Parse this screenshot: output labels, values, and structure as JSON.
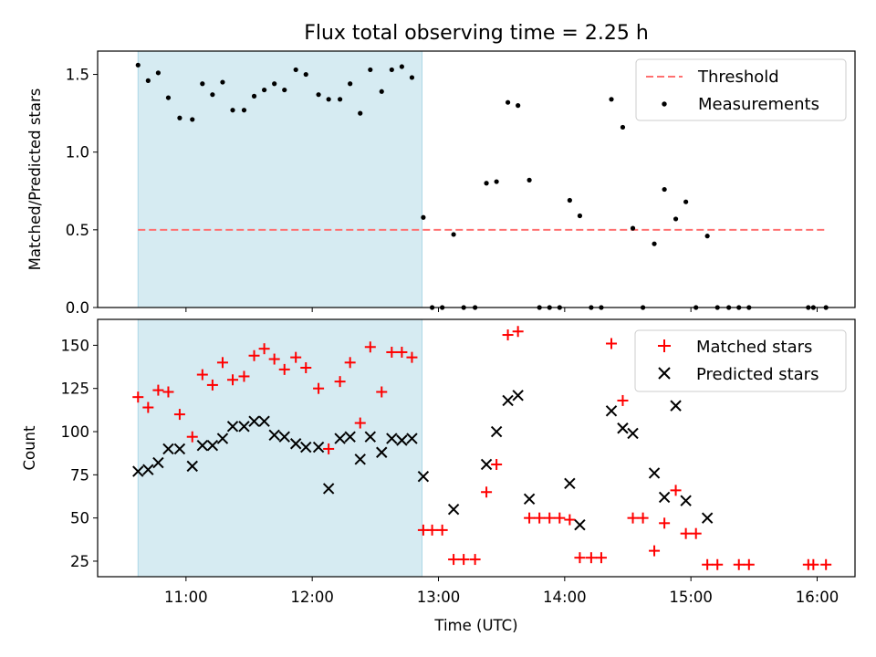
{
  "chart_data": {
    "title": "Flux total observing time = 2.25 h",
    "xlabel": "Time (UTC)",
    "x_unit": "hours UTC",
    "xlim": [
      10.3,
      16.3
    ],
    "xticks": [
      {
        "value": 11,
        "label": "11:00"
      },
      {
        "value": 12,
        "label": "12:00"
      },
      {
        "value": 13,
        "label": "13:00"
      },
      {
        "value": 14,
        "label": "14:00"
      },
      {
        "value": 15,
        "label": "15:00"
      },
      {
        "value": 16,
        "label": "16:00"
      }
    ],
    "shaded_interval": {
      "x_start": 10.62,
      "x_end": 12.87,
      "color": "#add8e6"
    },
    "panels": [
      {
        "type": "scatter",
        "ylabel": "Matched/Predicted stars",
        "ylim": [
          0,
          1.65
        ],
        "yticks": [
          0.0,
          0.5,
          1.0,
          1.5
        ],
        "ytick_labels": [
          "0.0",
          "0.5",
          "1.0",
          "1.5"
        ],
        "legend_position": "upper-right",
        "threshold": {
          "name": "Threshold",
          "y": 0.5,
          "x_start": 10.62,
          "x_end": 16.07,
          "color": "#ff7070",
          "style": "dashed"
        },
        "series": [
          {
            "name": "Measurements",
            "marker": "dot",
            "color": "#000000",
            "points": [
              [
                10.62,
                1.56
              ],
              [
                10.7,
                1.46
              ],
              [
                10.78,
                1.51
              ],
              [
                10.86,
                1.35
              ],
              [
                10.95,
                1.22
              ],
              [
                11.05,
                1.21
              ],
              [
                11.13,
                1.44
              ],
              [
                11.21,
                1.37
              ],
              [
                11.29,
                1.45
              ],
              [
                11.37,
                1.27
              ],
              [
                11.46,
                1.27
              ],
              [
                11.54,
                1.36
              ],
              [
                11.62,
                1.4
              ],
              [
                11.7,
                1.44
              ],
              [
                11.78,
                1.4
              ],
              [
                11.87,
                1.53
              ],
              [
                11.95,
                1.5
              ],
              [
                12.05,
                1.37
              ],
              [
                12.13,
                1.34
              ],
              [
                12.22,
                1.34
              ],
              [
                12.3,
                1.44
              ],
              [
                12.38,
                1.25
              ],
              [
                12.46,
                1.53
              ],
              [
                12.55,
                1.39
              ],
              [
                12.63,
                1.53
              ],
              [
                12.71,
                1.55
              ],
              [
                12.79,
                1.48
              ],
              [
                12.88,
                0.58
              ],
              [
                12.95,
                0.0
              ],
              [
                13.03,
                0.0
              ],
              [
                13.12,
                0.47
              ],
              [
                13.2,
                0.0
              ],
              [
                13.29,
                0.0
              ],
              [
                13.38,
                0.8
              ],
              [
                13.46,
                0.81
              ],
              [
                13.55,
                1.32
              ],
              [
                13.63,
                1.3
              ],
              [
                13.72,
                0.82
              ],
              [
                13.8,
                0.0
              ],
              [
                13.88,
                0.0
              ],
              [
                13.96,
                0.0
              ],
              [
                14.04,
                0.69
              ],
              [
                14.12,
                0.59
              ],
              [
                14.21,
                0.0
              ],
              [
                14.29,
                0.0
              ],
              [
                14.37,
                1.34
              ],
              [
                14.46,
                1.16
              ],
              [
                14.54,
                0.51
              ],
              [
                14.62,
                0.0
              ],
              [
                14.71,
                0.41
              ],
              [
                14.79,
                0.76
              ],
              [
                14.88,
                0.57
              ],
              [
                14.96,
                0.68
              ],
              [
                15.04,
                0.0
              ],
              [
                15.13,
                0.46
              ],
              [
                15.21,
                0.0
              ],
              [
                15.3,
                0.0
              ],
              [
                15.38,
                0.0
              ],
              [
                15.46,
                0.0
              ],
              [
                15.93,
                0.0
              ],
              [
                15.97,
                0.0
              ],
              [
                16.07,
                0.0
              ]
            ]
          }
        ]
      },
      {
        "type": "scatter",
        "ylabel": "Count",
        "ylim": [
          16,
          165
        ],
        "yticks": [
          25,
          50,
          75,
          100,
          125,
          150
        ],
        "ytick_labels": [
          "25",
          "50",
          "75",
          "100",
          "125",
          "150"
        ],
        "legend_position": "upper-right",
        "series": [
          {
            "name": "Matched stars",
            "marker": "plus",
            "color": "#ff0000",
            "points": [
              [
                10.62,
                120
              ],
              [
                10.7,
                114
              ],
              [
                10.78,
                124
              ],
              [
                10.86,
                123
              ],
              [
                10.95,
                110
              ],
              [
                11.05,
                97
              ],
              [
                11.13,
                133
              ],
              [
                11.21,
                127
              ],
              [
                11.29,
                140
              ],
              [
                11.37,
                130
              ],
              [
                11.46,
                132
              ],
              [
                11.54,
                144
              ],
              [
                11.62,
                148
              ],
              [
                11.7,
                142
              ],
              [
                11.78,
                136
              ],
              [
                11.87,
                143
              ],
              [
                11.95,
                137
              ],
              [
                12.05,
                125
              ],
              [
                12.13,
                90
              ],
              [
                12.22,
                129
              ],
              [
                12.3,
                140
              ],
              [
                12.38,
                105
              ],
              [
                12.46,
                149
              ],
              [
                12.55,
                123
              ],
              [
                12.63,
                146
              ],
              [
                12.71,
                146
              ],
              [
                12.79,
                143
              ],
              [
                12.88,
                43
              ],
              [
                12.95,
                43
              ],
              [
                13.03,
                43
              ],
              [
                13.12,
                26
              ],
              [
                13.2,
                26
              ],
              [
                13.29,
                26
              ],
              [
                13.38,
                65
              ],
              [
                13.46,
                81
              ],
              [
                13.55,
                156
              ],
              [
                13.63,
                158
              ],
              [
                13.72,
                50
              ],
              [
                13.8,
                50
              ],
              [
                13.88,
                50
              ],
              [
                13.96,
                50
              ],
              [
                14.04,
                49
              ],
              [
                14.12,
                27
              ],
              [
                14.21,
                27
              ],
              [
                14.29,
                27
              ],
              [
                14.37,
                151
              ],
              [
                14.46,
                118
              ],
              [
                14.54,
                50
              ],
              [
                14.62,
                50
              ],
              [
                14.71,
                31
              ],
              [
                14.79,
                47
              ],
              [
                14.88,
                66
              ],
              [
                14.96,
                41
              ],
              [
                15.04,
                41
              ],
              [
                15.13,
                23
              ],
              [
                15.21,
                23
              ],
              [
                15.38,
                23
              ],
              [
                15.46,
                23
              ],
              [
                15.93,
                23
              ],
              [
                15.97,
                23
              ],
              [
                16.07,
                23
              ]
            ]
          },
          {
            "name": "Predicted stars",
            "marker": "x",
            "color": "#000000",
            "points": [
              [
                10.62,
                77
              ],
              [
                10.7,
                78
              ],
              [
                10.78,
                82
              ],
              [
                10.86,
                90
              ],
              [
                10.95,
                90
              ],
              [
                11.05,
                80
              ],
              [
                11.13,
                92
              ],
              [
                11.21,
                92
              ],
              [
                11.29,
                96
              ],
              [
                11.37,
                103
              ],
              [
                11.46,
                103
              ],
              [
                11.54,
                106
              ],
              [
                11.62,
                106
              ],
              [
                11.7,
                98
              ],
              [
                11.78,
                97
              ],
              [
                11.87,
                93
              ],
              [
                11.95,
                91
              ],
              [
                12.05,
                91
              ],
              [
                12.13,
                67
              ],
              [
                12.22,
                96
              ],
              [
                12.3,
                97
              ],
              [
                12.38,
                84
              ],
              [
                12.46,
                97
              ],
              [
                12.55,
                88
              ],
              [
                12.63,
                96
              ],
              [
                12.71,
                95
              ],
              [
                12.79,
                96
              ],
              [
                12.88,
                74
              ],
              [
                13.12,
                55
              ],
              [
                13.38,
                81
              ],
              [
                13.46,
                100
              ],
              [
                13.55,
                118
              ],
              [
                13.63,
                121
              ],
              [
                13.72,
                61
              ],
              [
                14.04,
                70
              ],
              [
                14.12,
                46
              ],
              [
                14.37,
                112
              ],
              [
                14.46,
                102
              ],
              [
                14.54,
                99
              ],
              [
                14.71,
                76
              ],
              [
                14.79,
                62
              ],
              [
                14.88,
                115
              ],
              [
                14.96,
                60
              ],
              [
                15.13,
                50
              ]
            ]
          }
        ]
      }
    ]
  }
}
